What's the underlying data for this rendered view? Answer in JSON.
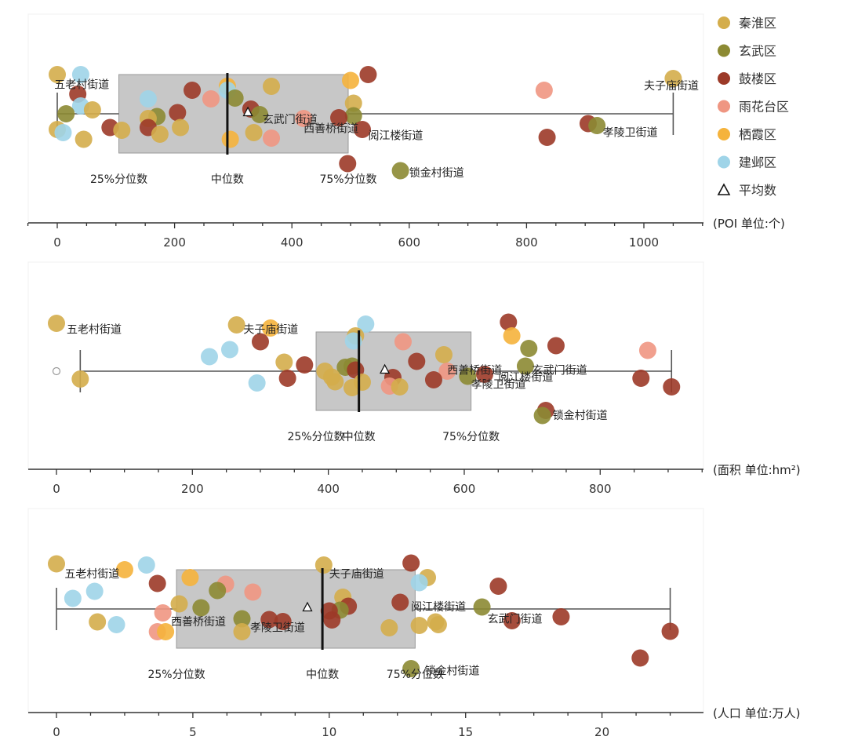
{
  "legend": {
    "colors": {
      "秦淮区": "#d4ad4b",
      "玄武区": "#8c8a33",
      "鼓楼区": "#9c3a28",
      "雨花台区": "#ef9682",
      "栖霞区": "#f5b33c",
      "建邺区": "#9fd4e8"
    },
    "entries": [
      {
        "label": "秦淮区",
        "key": "秦淮区"
      },
      {
        "label": "玄武区",
        "key": "玄武区"
      },
      {
        "label": "鼓楼区",
        "key": "鼓楼区"
      },
      {
        "label": "雨花台区",
        "key": "雨花台区"
      },
      {
        "label": "栖霞区",
        "key": "栖霞区"
      },
      {
        "label": "建邺区",
        "key": "建邺区"
      },
      {
        "label": "平均数",
        "key": "mean"
      }
    ]
  },
  "chart_data": [
    {
      "type": "box-strip",
      "unit_label": "(POI 单位:个)",
      "xlim": [
        -50,
        1100
      ],
      "ticks": [
        0,
        200,
        400,
        600,
        800,
        1000
      ],
      "box": {
        "whisker_low": 0,
        "q1": 105,
        "median": 290,
        "q3": 496,
        "whisker_high": 1050,
        "mean": 325
      },
      "box_labels": {
        "q1": "25%分位数",
        "median": "中位数",
        "q3": "75%分位数"
      },
      "points": [
        {
          "x": 0,
          "y": 1.0,
          "d": "秦淮区"
        },
        {
          "x": 40,
          "y": 1.0,
          "d": "建邺区"
        },
        {
          "x": 530,
          "y": 1.0,
          "d": "鼓楼区"
        },
        {
          "x": 1050,
          "y": 0.9,
          "d": "秦淮区"
        },
        {
          "x": 500,
          "y": 0.85,
          "d": "栖霞区"
        },
        {
          "x": 290,
          "y": 0.7,
          "d": "栖霞区"
        },
        {
          "x": 365,
          "y": 0.7,
          "d": "秦淮区"
        },
        {
          "x": 230,
          "y": 0.6,
          "d": "鼓楼区"
        },
        {
          "x": 290,
          "y": 0.6,
          "d": "建邺区"
        },
        {
          "x": 830,
          "y": 0.6,
          "d": "雨花台区"
        },
        {
          "x": 35,
          "y": 0.5,
          "d": "鼓楼区"
        },
        {
          "x": 155,
          "y": 0.38,
          "d": "建邺区"
        },
        {
          "x": 262,
          "y": 0.38,
          "d": "雨花台区"
        },
        {
          "x": 303,
          "y": 0.4,
          "d": "玄武区"
        },
        {
          "x": 505,
          "y": 0.27,
          "d": "秦淮区"
        },
        {
          "x": 40,
          "y": 0.2,
          "d": "建邺区"
        },
        {
          "x": 60,
          "y": 0.1,
          "d": "秦淮区"
        },
        {
          "x": 330,
          "y": 0.12,
          "d": "鼓楼区"
        },
        {
          "x": 15,
          "y": 0.0,
          "d": "玄武区"
        },
        {
          "x": 205,
          "y": 0.03,
          "d": "鼓楼区"
        },
        {
          "x": 170,
          "y": -0.07,
          "d": "玄武区"
        },
        {
          "x": 345,
          "y": -0.02,
          "d": "玄武区"
        },
        {
          "x": 155,
          "y": -0.12,
          "d": "秦淮区"
        },
        {
          "x": 505,
          "y": -0.05,
          "d": "玄武区"
        },
        {
          "x": 480,
          "y": -0.1,
          "d": "鼓楼区"
        },
        {
          "x": 420,
          "y": -0.12,
          "d": "雨花台区"
        },
        {
          "x": 0,
          "y": -0.4,
          "d": "秦淮区"
        },
        {
          "x": 10,
          "y": -0.48,
          "d": "建邺区"
        },
        {
          "x": 45,
          "y": -0.65,
          "d": "秦淮区"
        },
        {
          "x": 90,
          "y": -0.35,
          "d": "鼓楼区"
        },
        {
          "x": 110,
          "y": -0.42,
          "d": "秦淮区"
        },
        {
          "x": 155,
          "y": -0.35,
          "d": "鼓楼区"
        },
        {
          "x": 175,
          "y": -0.52,
          "d": "秦淮区"
        },
        {
          "x": 210,
          "y": -0.35,
          "d": "秦淮区"
        },
        {
          "x": 295,
          "y": -0.65,
          "d": "栖霞区"
        },
        {
          "x": 335,
          "y": -0.48,
          "d": "秦淮区"
        },
        {
          "x": 365,
          "y": -0.62,
          "d": "雨花台区"
        },
        {
          "x": 520,
          "y": -0.4,
          "d": "鼓楼区"
        },
        {
          "x": 905,
          "y": -0.25,
          "d": "鼓楼区"
        },
        {
          "x": 920,
          "y": -0.3,
          "d": "玄武区"
        },
        {
          "x": 835,
          "y": -0.6,
          "d": "鼓楼区"
        },
        {
          "x": 495,
          "y": -1.27,
          "d": "鼓楼区"
        },
        {
          "x": 585,
          "y": -1.45,
          "d": "玄武区"
        }
      ],
      "annotations": [
        {
          "text": "五老村街道",
          "x": -5,
          "y": 0.75
        },
        {
          "text": "夫子庙街道",
          "x": 1000,
          "y": 0.72
        },
        {
          "text": "玄武门街道",
          "x": 350,
          "y": -0.14
        },
        {
          "text": "西善桥街道",
          "x": 420,
          "y": -0.37
        },
        {
          "text": "阅江楼街道",
          "x": 530,
          "y": -0.55
        },
        {
          "text": "孝陵卫街道",
          "x": 930,
          "y": -0.47
        },
        {
          "text": "锁金村街道",
          "x": 600,
          "y": -1.5
        }
      ]
    },
    {
      "type": "box-strip",
      "unit_label": "(面积 单位:hm²)",
      "xlim": [
        -50,
        960
      ],
      "ticks": [
        0,
        200,
        400,
        600,
        800
      ],
      "box": {
        "whisker_low": 35,
        "q1": 382,
        "median": 445,
        "q3": 610,
        "whisker_high": 905,
        "mean": 483
      },
      "outliers": [
        0
      ],
      "box_labels": {
        "q1": "25%分位数",
        "median": "中位数",
        "q3": "75%分位数"
      },
      "points": [
        {
          "x": 0,
          "y": 1.22,
          "d": "秦淮区"
        },
        {
          "x": 265,
          "y": 1.18,
          "d": "秦淮区"
        },
        {
          "x": 315,
          "y": 1.1,
          "d": "栖霞区"
        },
        {
          "x": 455,
          "y": 1.2,
          "d": "建邺区"
        },
        {
          "x": 665,
          "y": 1.25,
          "d": "鼓楼区"
        },
        {
          "x": 440,
          "y": 0.9,
          "d": "秦淮区"
        },
        {
          "x": 670,
          "y": 0.9,
          "d": "栖霞区"
        },
        {
          "x": 300,
          "y": 0.75,
          "d": "鼓楼区"
        },
        {
          "x": 437,
          "y": 0.77,
          "d": "建邺区"
        },
        {
          "x": 510,
          "y": 0.75,
          "d": "雨花台区"
        },
        {
          "x": 255,
          "y": 0.55,
          "d": "建邺区"
        },
        {
          "x": 695,
          "y": 0.58,
          "d": "玄武区"
        },
        {
          "x": 735,
          "y": 0.65,
          "d": "鼓楼区"
        },
        {
          "x": 870,
          "y": 0.53,
          "d": "雨花台区"
        },
        {
          "x": 225,
          "y": 0.37,
          "d": "建邺区"
        },
        {
          "x": 570,
          "y": 0.42,
          "d": "秦淮区"
        },
        {
          "x": 530,
          "y": 0.25,
          "d": "鼓楼区"
        },
        {
          "x": 335,
          "y": 0.23,
          "d": "秦淮区"
        },
        {
          "x": 365,
          "y": 0.16,
          "d": "鼓楼区"
        },
        {
          "x": 425,
          "y": 0.1,
          "d": "玄武区"
        },
        {
          "x": 435,
          "y": 0.13,
          "d": "玄武区"
        },
        {
          "x": 440,
          "y": 0.03,
          "d": "鼓楼区"
        },
        {
          "x": 690,
          "y": 0.13,
          "d": "玄武区"
        },
        {
          "x": 575,
          "y": 0.0,
          "d": "雨花台区"
        },
        {
          "x": 395,
          "y": 0.0,
          "d": "秦淮区"
        },
        {
          "x": 405,
          "y": -0.15,
          "d": "秦淮区"
        },
        {
          "x": 630,
          "y": -0.08,
          "d": "鼓楼区"
        },
        {
          "x": 605,
          "y": -0.13,
          "d": "玄武区"
        },
        {
          "x": 35,
          "y": -0.2,
          "d": "秦淮区"
        },
        {
          "x": 340,
          "y": -0.18,
          "d": "鼓楼区"
        },
        {
          "x": 410,
          "y": -0.27,
          "d": "秦淮区"
        },
        {
          "x": 450,
          "y": -0.28,
          "d": "秦淮区"
        },
        {
          "x": 495,
          "y": -0.16,
          "d": "鼓楼区"
        },
        {
          "x": 555,
          "y": -0.22,
          "d": "鼓楼区"
        },
        {
          "x": 490,
          "y": -0.38,
          "d": "雨花台区"
        },
        {
          "x": 505,
          "y": -0.4,
          "d": "秦淮区"
        },
        {
          "x": 435,
          "y": -0.42,
          "d": "秦淮区"
        },
        {
          "x": 295,
          "y": -0.3,
          "d": "建邺区"
        },
        {
          "x": 860,
          "y": -0.18,
          "d": "鼓楼区"
        },
        {
          "x": 905,
          "y": -0.4,
          "d": "鼓楼区"
        },
        {
          "x": 720,
          "y": -1.0,
          "d": "鼓楼区"
        },
        {
          "x": 715,
          "y": -1.13,
          "d": "玄武区"
        }
      ],
      "annotations": [
        {
          "text": "五老村街道",
          "x": 15,
          "y": 1.07
        },
        {
          "text": "夫子庙街道",
          "x": 275,
          "y": 1.07
        },
        {
          "text": "西善桥街道",
          "x": 575,
          "y": 0.03
        },
        {
          "text": "玄武门街道",
          "x": 700,
          "y": 0.03
        },
        {
          "text": "阅江楼街道",
          "x": 650,
          "y": -0.15
        },
        {
          "text": "孝陵卫街道",
          "x": 610,
          "y": -0.33
        },
        {
          "text": "锁金村街道",
          "x": 730,
          "y": -1.12
        }
      ]
    },
    {
      "type": "box-strip",
      "unit_label": "(人口 单位:万人)",
      "xlim": [
        -1,
        23.8
      ],
      "ticks": [
        0,
        5,
        10,
        15,
        20
      ],
      "box": {
        "whisker_low": 0,
        "q1": 4.4,
        "median": 9.75,
        "q3": 13.15,
        "whisker_high": 22.5,
        "mean": 9.2
      },
      "box_labels": {
        "q1": "25%分位数",
        "median": "中位数",
        "q3": "75%分位数"
      },
      "points": [
        {
          "x": 0,
          "y": 1.15,
          "d": "秦淮区"
        },
        {
          "x": 2.5,
          "y": 1.0,
          "d": "栖霞区"
        },
        {
          "x": 3.3,
          "y": 1.12,
          "d": "建邺区"
        },
        {
          "x": 9.8,
          "y": 1.12,
          "d": "秦淮区"
        },
        {
          "x": 13.0,
          "y": 1.17,
          "d": "鼓楼区"
        },
        {
          "x": 4.9,
          "y": 0.8,
          "d": "栖霞区"
        },
        {
          "x": 13.6,
          "y": 0.8,
          "d": "秦淮区"
        },
        {
          "x": 13.3,
          "y": 0.67,
          "d": "建邺区"
        },
        {
          "x": 3.7,
          "y": 0.65,
          "d": "鼓楼区"
        },
        {
          "x": 6.2,
          "y": 0.63,
          "d": "雨花台区"
        },
        {
          "x": 16.2,
          "y": 0.58,
          "d": "鼓楼区"
        },
        {
          "x": 5.9,
          "y": 0.47,
          "d": "玄武区"
        },
        {
          "x": 7.2,
          "y": 0.43,
          "d": "雨花台区"
        },
        {
          "x": 1.4,
          "y": 0.45,
          "d": "建邺区"
        },
        {
          "x": 0.6,
          "y": 0.27,
          "d": "建邺区"
        },
        {
          "x": 10.5,
          "y": 0.3,
          "d": "秦淮区"
        },
        {
          "x": 12.6,
          "y": 0.17,
          "d": "鼓楼区"
        },
        {
          "x": 4.5,
          "y": 0.13,
          "d": "秦淮区"
        },
        {
          "x": 5.3,
          "y": 0.03,
          "d": "玄武区"
        },
        {
          "x": 10.7,
          "y": 0.07,
          "d": "鼓楼区"
        },
        {
          "x": 10.4,
          "y": -0.03,
          "d": "玄武区"
        },
        {
          "x": 10.0,
          "y": -0.05,
          "d": "鼓楼区"
        },
        {
          "x": 15.6,
          "y": 0.05,
          "d": "玄武区"
        },
        {
          "x": 3.9,
          "y": -0.1,
          "d": "雨花台区"
        },
        {
          "x": 6.8,
          "y": -0.25,
          "d": "玄武区"
        },
        {
          "x": 7.8,
          "y": -0.27,
          "d": "鼓楼区"
        },
        {
          "x": 8.3,
          "y": -0.32,
          "d": "鼓楼区"
        },
        {
          "x": 10.1,
          "y": -0.28,
          "d": "鼓楼区"
        },
        {
          "x": 1.5,
          "y": -0.33,
          "d": "秦淮区"
        },
        {
          "x": 2.2,
          "y": -0.4,
          "d": "建邺区"
        },
        {
          "x": 3.7,
          "y": -0.58,
          "d": "雨花台区"
        },
        {
          "x": 4.0,
          "y": -0.58,
          "d": "栖霞区"
        },
        {
          "x": 6.8,
          "y": -0.58,
          "d": "秦淮区"
        },
        {
          "x": 12.2,
          "y": -0.48,
          "d": "秦淮区"
        },
        {
          "x": 13.3,
          "y": -0.42,
          "d": "秦淮区"
        },
        {
          "x": 13.9,
          "y": -0.33,
          "d": "秦淮区"
        },
        {
          "x": 14.0,
          "y": -0.4,
          "d": "秦淮区"
        },
        {
          "x": 16.7,
          "y": -0.3,
          "d": "鼓楼区"
        },
        {
          "x": 18.5,
          "y": -0.2,
          "d": "鼓楼区"
        },
        {
          "x": 22.5,
          "y": -0.57,
          "d": "鼓楼区"
        },
        {
          "x": 21.4,
          "y": -1.25,
          "d": "鼓楼区"
        },
        {
          "x": 13.0,
          "y": -1.52,
          "d": "玄武区"
        }
      ],
      "annotations": [
        {
          "text": "五老村街道",
          "x": 0.3,
          "y": 0.9
        },
        {
          "text": "夫子庙街道",
          "x": 10.0,
          "y": 0.9
        },
        {
          "text": "阅江楼街道",
          "x": 13.0,
          "y": 0.06
        },
        {
          "text": "玄武门街道",
          "x": 15.8,
          "y": -0.25
        },
        {
          "text": "西善桥街道",
          "x": 4.2,
          "y": -0.32
        },
        {
          "text": "孝陵卫街道",
          "x": 7.1,
          "y": -0.47
        },
        {
          "text": "锁金村街道",
          "x": 13.5,
          "y": -1.57
        }
      ]
    }
  ]
}
